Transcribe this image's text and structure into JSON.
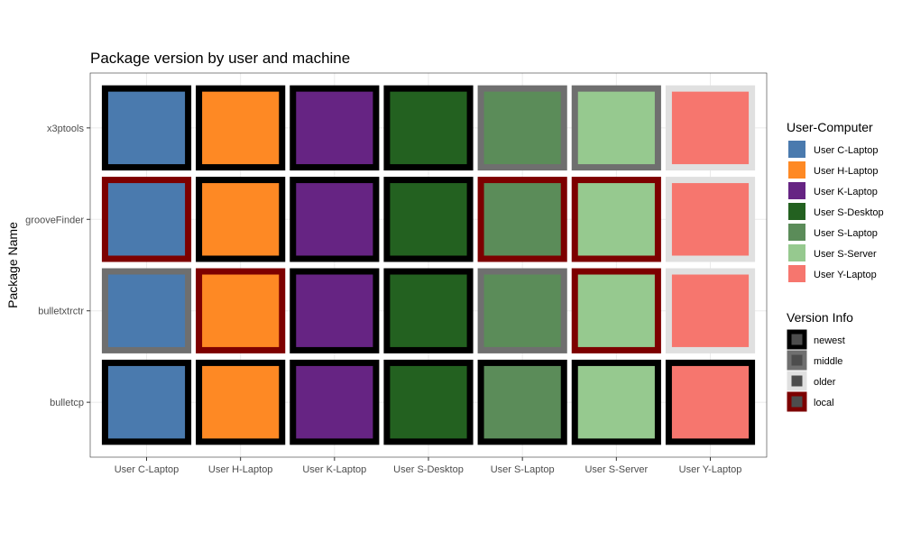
{
  "chart_data": {
    "type": "heatmap",
    "title": "Package version by user and machine",
    "xlabel": "",
    "ylabel": "Package Name",
    "x_categories": [
      "User C-Laptop",
      "User H-Laptop",
      "User K-Laptop",
      "User S-Desktop",
      "User S-Laptop",
      "User S-Server",
      "User Y-Laptop"
    ],
    "y_categories": [
      "bulletcp",
      "bulletxtrctr",
      "grooveFinder",
      "x3ptools"
    ],
    "fill_legend_title": "User-Computer",
    "fill_colors": {
      "User C-Laptop": "#4a7aae",
      "User H-Laptop": "#fe8924",
      "User K-Laptop": "#662483",
      "User S-Desktop": "#236120",
      "User S-Laptop": "#5b8c59",
      "User S-Server": "#96c98f",
      "User Y-Laptop": "#f6766e"
    },
    "version_legend_title": "Version Info",
    "version_levels": [
      "newest",
      "middle",
      "older",
      "local"
    ],
    "version_colors": {
      "newest": "#000000",
      "middle": "#6f6f6f",
      "older": "#e0e0e0",
      "local": "#7d0000"
    },
    "cells": {
      "x3ptools": [
        "newest",
        "newest",
        "newest",
        "newest",
        "middle",
        "middle",
        "older"
      ],
      "grooveFinder": [
        "local",
        "newest",
        "newest",
        "newest",
        "local",
        "local",
        "older"
      ],
      "bulletxtrctr": [
        "middle",
        "local",
        "newest",
        "newest",
        "middle",
        "local",
        "older"
      ],
      "bulletcp": [
        "newest",
        "newest",
        "newest",
        "newest",
        "newest",
        "newest",
        "newest"
      ]
    },
    "grid": true,
    "legend_position": "right"
  }
}
